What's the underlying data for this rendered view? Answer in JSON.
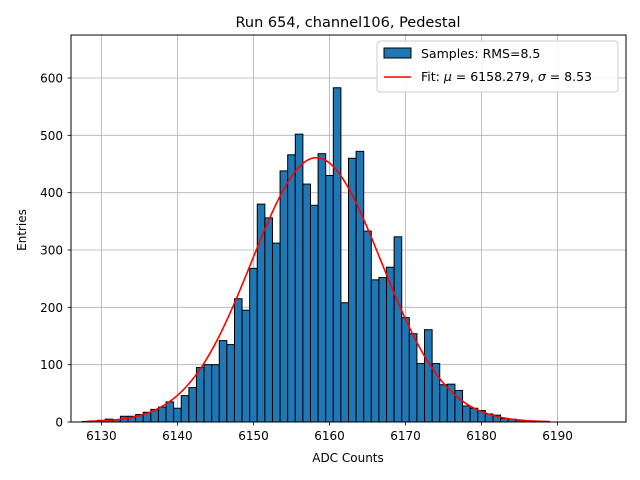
{
  "chart_data": {
    "type": "bar",
    "title": "Run 654, channel106, Pedestal",
    "xlabel": "ADC Counts",
    "ylabel": "Entries",
    "xlim": [
      6126,
      6199
    ],
    "ylim": [
      0,
      675
    ],
    "xticks": [
      6130,
      6140,
      6150,
      6160,
      6170,
      6180,
      6190
    ],
    "yticks": [
      0,
      100,
      200,
      300,
      400,
      500,
      600
    ],
    "grid": true,
    "legend_position": "top-right",
    "bin_width": 1,
    "bins": [
      6128,
      6129,
      6130,
      6131,
      6132,
      6133,
      6134,
      6135,
      6136,
      6137,
      6138,
      6139,
      6140,
      6141,
      6142,
      6143,
      6144,
      6145,
      6146,
      6147,
      6148,
      6149,
      6150,
      6151,
      6152,
      6153,
      6154,
      6155,
      6156,
      6157,
      6158,
      6159,
      6160,
      6161,
      6162,
      6163,
      6164,
      6165,
      6166,
      6167,
      6168,
      6169,
      6170,
      6171,
      6172,
      6173,
      6174,
      6175,
      6176,
      6177,
      6178,
      6179,
      6180,
      6181,
      6182,
      6183,
      6184,
      6185,
      6186,
      6187,
      6188
    ],
    "counts": [
      1,
      2,
      3,
      5,
      4,
      10,
      10,
      13,
      17,
      22,
      26,
      35,
      24,
      46,
      60,
      95,
      100,
      100,
      142,
      135,
      215,
      195,
      268,
      380,
      356,
      312,
      438,
      466,
      502,
      415,
      378,
      468,
      430,
      583,
      208,
      460,
      472,
      333,
      248,
      252,
      270,
      323,
      182,
      154,
      102,
      161,
      102,
      65,
      66,
      55,
      28,
      24,
      20,
      14,
      12,
      6,
      5,
      3,
      2,
      1,
      1
    ],
    "series": [
      {
        "name": "Samples: RMS=8.5",
        "color": "#1f77b4",
        "kind": "histogram"
      },
      {
        "name": "Fit: μ = 6158.279, σ = 8.53",
        "color": "#ff0000",
        "kind": "gaussian-fit",
        "mu": 6158.279,
        "sigma": 8.53,
        "amplitude": 461,
        "x_range": [
          6128,
          6189
        ]
      }
    ],
    "legend": [
      {
        "label_prefix": "Samples: RMS=8.5",
        "label_mu_sym": "",
        "label_mid": "",
        "label_sigma_sym": "",
        "label_suffix": ""
      },
      {
        "label_prefix": "Fit: ",
        "label_mu_sym": "μ",
        "label_mid": " = 6158.279, ",
        "label_sigma_sym": "σ",
        "label_suffix": " = 8.53"
      }
    ]
  }
}
